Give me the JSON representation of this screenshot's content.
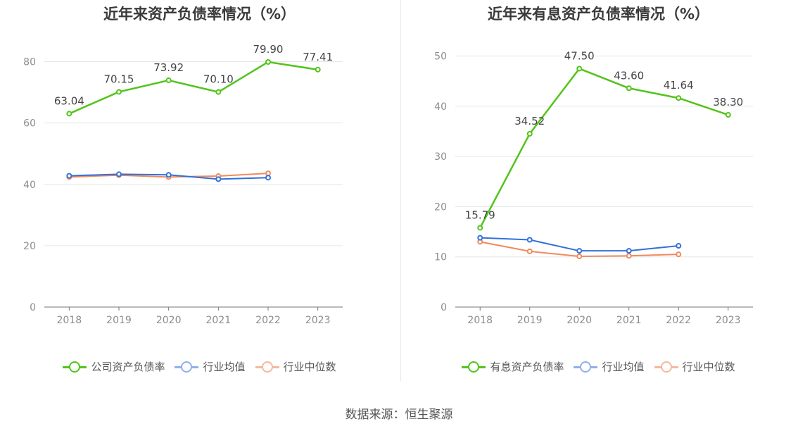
{
  "source": "数据来源：恒生聚源",
  "chart_data": [
    {
      "type": "line",
      "title": "近年来资产负债率情况（%）",
      "x": [
        "2018",
        "2019",
        "2020",
        "2021",
        "2022",
        "2023"
      ],
      "ylim": [
        0,
        90
      ],
      "yticks": [
        0,
        20,
        40,
        60,
        80
      ],
      "grid": true,
      "legend_position": "bottom",
      "series": [
        {
          "name": "公司资产负债率",
          "color": "#52c41a",
          "values": [
            63.04,
            70.15,
            73.92,
            70.1,
            79.9,
            77.41
          ],
          "labels": [
            "63.04",
            "70.15",
            "73.92",
            "70.10",
            "79.90",
            "77.41"
          ]
        },
        {
          "name": "行业均值",
          "color": "#3370d9",
          "values": [
            42.8,
            43.3,
            43.1,
            41.7,
            42.2,
            null
          ]
        },
        {
          "name": "行业中位数",
          "color": "#f08a5d",
          "values": [
            42.4,
            43.0,
            42.4,
            42.7,
            43.6,
            null
          ]
        }
      ]
    },
    {
      "type": "line",
      "title": "近年来有息资产负债率情况（%）",
      "x": [
        "2018",
        "2019",
        "2020",
        "2021",
        "2022",
        "2023"
      ],
      "ylim": [
        0,
        55
      ],
      "yticks": [
        0,
        10,
        20,
        30,
        40,
        50
      ],
      "grid": true,
      "legend_position": "bottom",
      "series": [
        {
          "name": "有息资产负债率",
          "color": "#52c41a",
          "values": [
            15.79,
            34.52,
            47.5,
            43.6,
            41.64,
            38.3
          ],
          "labels": [
            "15.79",
            "34.52",
            "47.50",
            "43.60",
            "41.64",
            "38.30"
          ]
        },
        {
          "name": "行业均值",
          "color": "#3370d9",
          "values": [
            13.8,
            13.4,
            11.2,
            11.2,
            12.2,
            null
          ]
        },
        {
          "name": "行业中位数",
          "color": "#f08a5d",
          "values": [
            13.0,
            11.1,
            10.1,
            10.2,
            10.5,
            null
          ]
        }
      ]
    }
  ]
}
